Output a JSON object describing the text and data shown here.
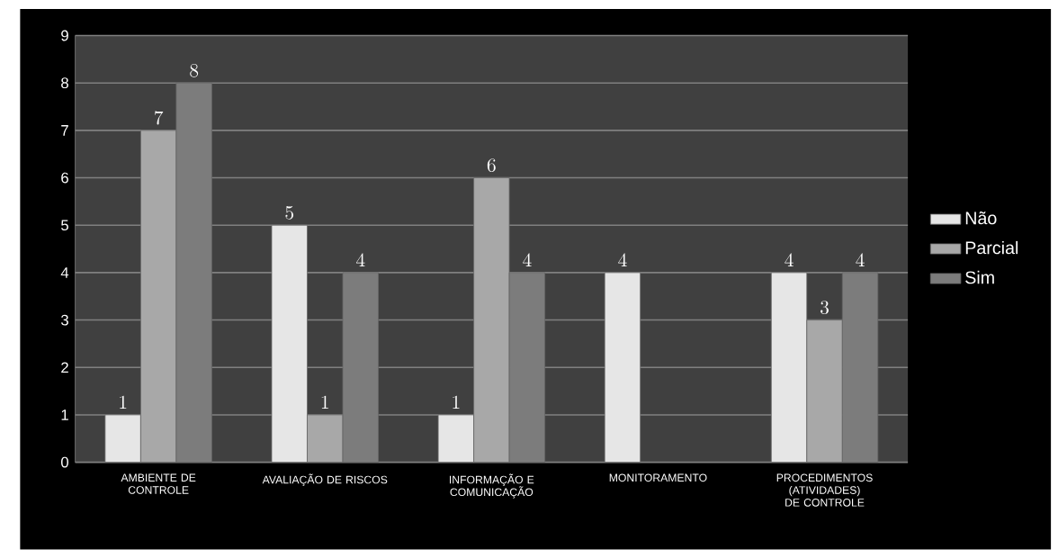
{
  "chart_data": {
    "type": "bar",
    "categories": [
      "AMBIENTE DE CONTROLE",
      "AVALIAÇÃO DE RISCOS",
      "INFORMAÇÃO E COMUNICAÇÃO",
      "MONITORAMENTO",
      "PROCEDIMENTOS (ATIVIDADES) DE CONTROLE"
    ],
    "series": [
      {
        "name": "Não",
        "color": "#e6e6e6",
        "values": [
          1,
          5,
          1,
          4,
          4
        ]
      },
      {
        "name": "Parcial",
        "color": "#a8a8a8",
        "values": [
          7,
          1,
          6,
          null,
          3
        ]
      },
      {
        "name": "Sim",
        "color": "#7c7c7c",
        "values": [
          8,
          4,
          4,
          null,
          4
        ]
      }
    ],
    "ylim": [
      0,
      9
    ],
    "yticks": [
      0,
      1,
      2,
      3,
      4,
      5,
      6,
      7,
      8,
      9
    ],
    "grid": "y",
    "legend": "right",
    "data_labels": true
  }
}
